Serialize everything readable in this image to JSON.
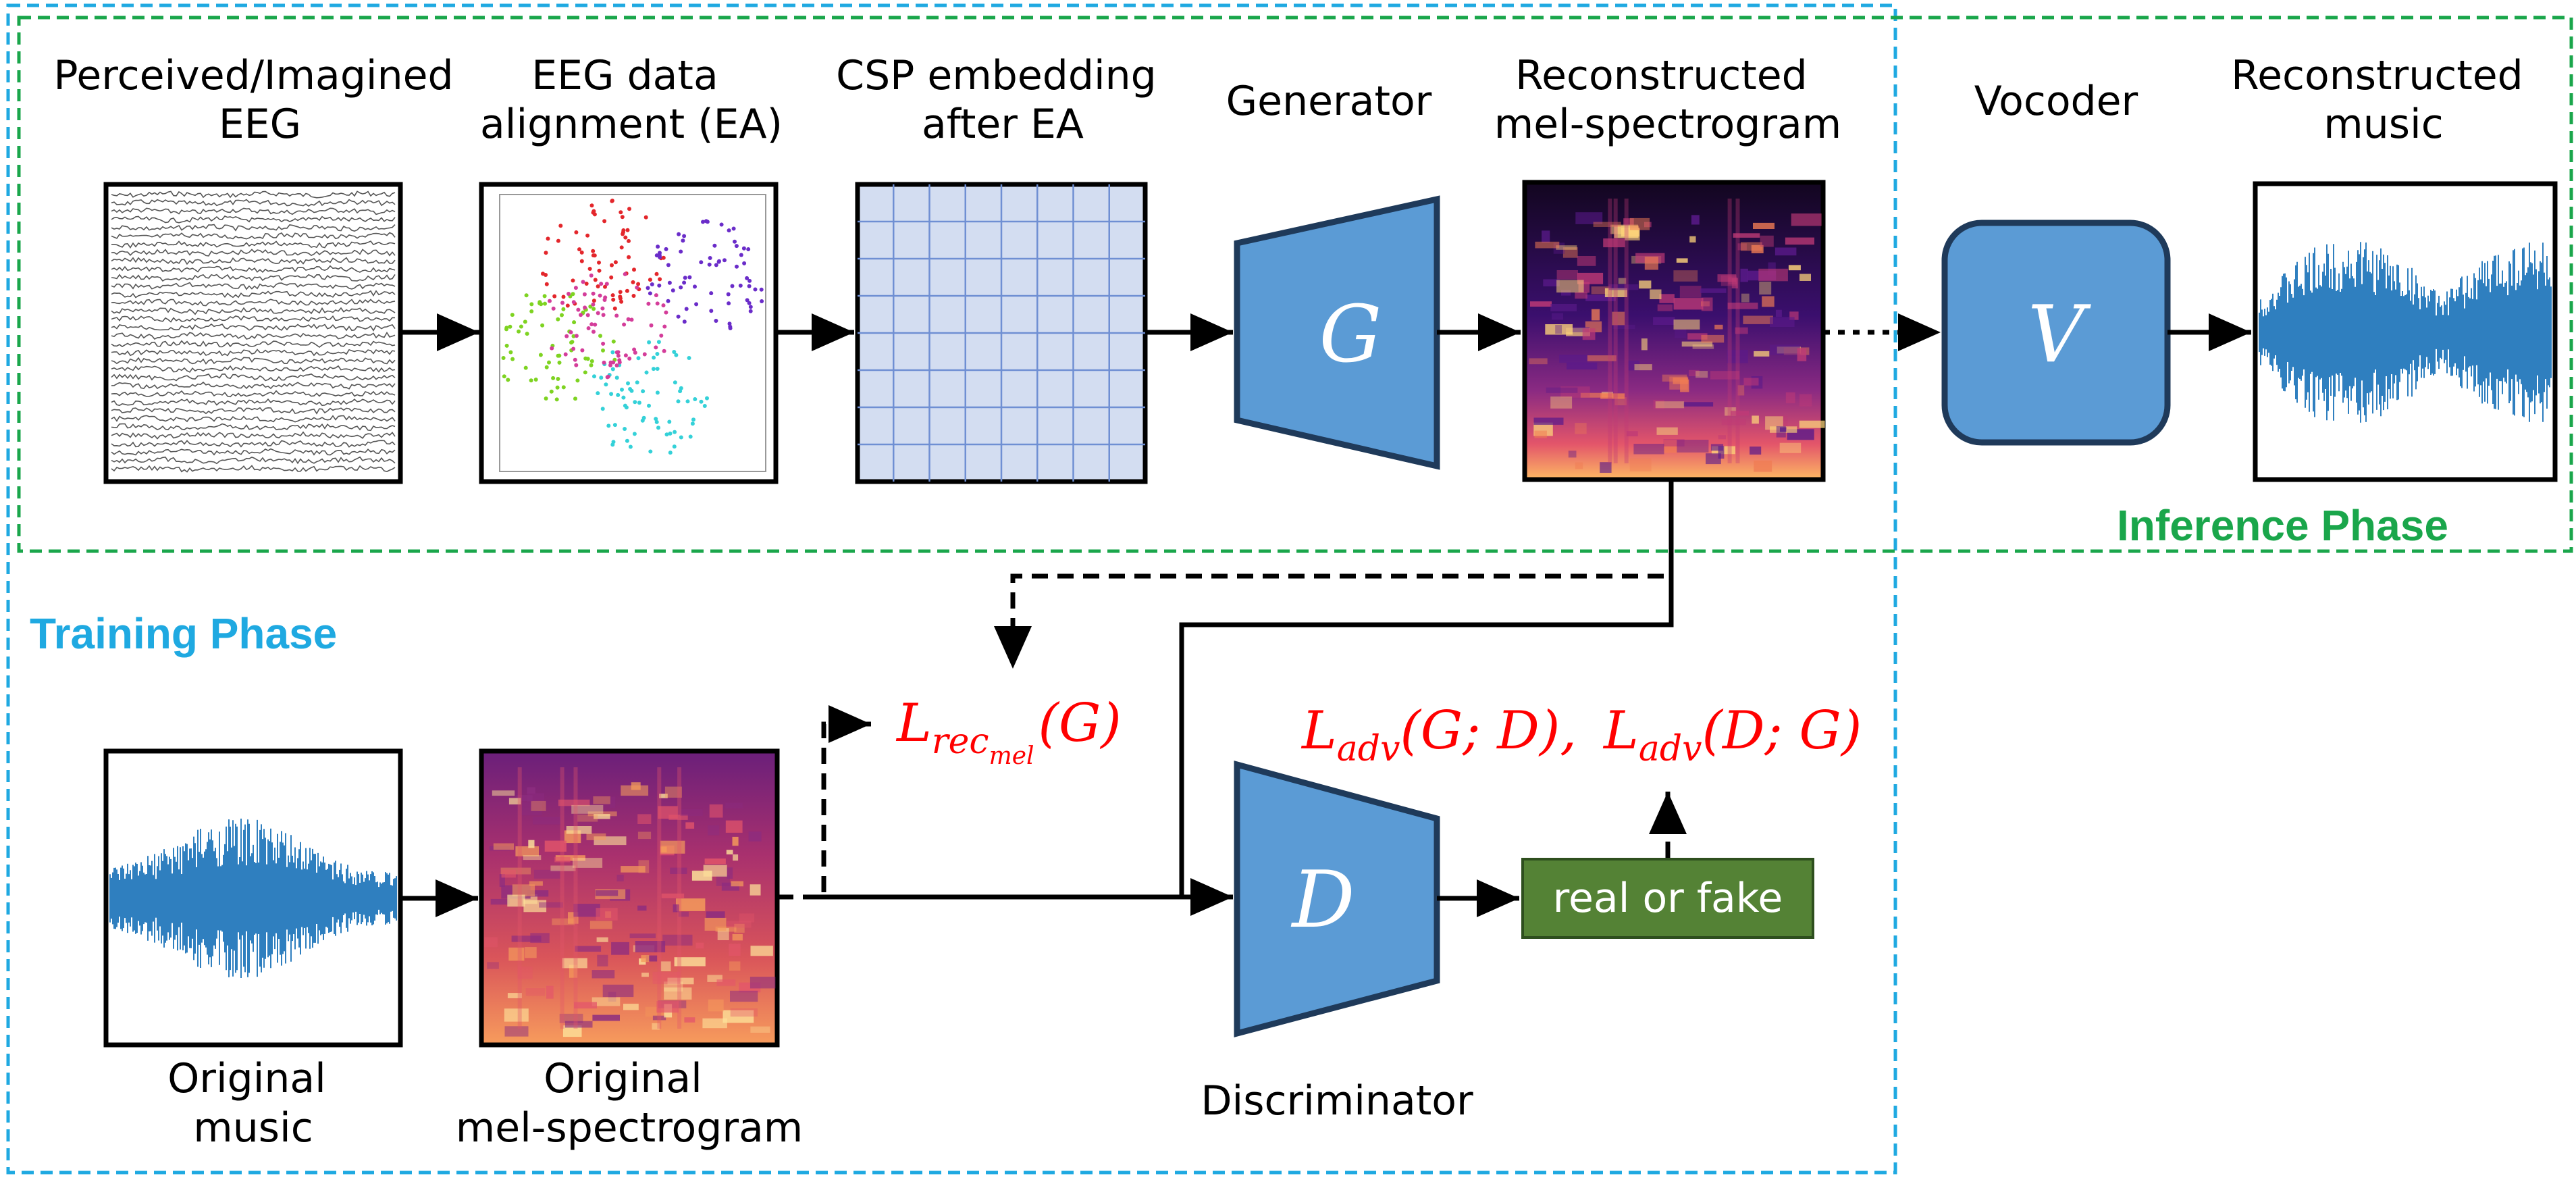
{
  "labels": {
    "eeg": [
      "Perceived/Imagined",
      "EEG"
    ],
    "ea": [
      "EEG data",
      "alignment (EA)"
    ],
    "csp": [
      "CSP embedding",
      "after EA"
    ],
    "generator": "Generator",
    "recon_mel": [
      "Reconstructed",
      "mel-spectrogram"
    ],
    "vocoder": "Vocoder",
    "recon_music": [
      "Reconstructed",
      "music"
    ],
    "orig_music": [
      "Original",
      "music"
    ],
    "orig_mel": [
      "Original",
      "mel-spectrogram"
    ],
    "discriminator": "Discriminator"
  },
  "phases": {
    "training": "Training Phase",
    "inference": "Inference Phase"
  },
  "symbols": {
    "generator": "G",
    "discriminator": "D",
    "vocoder": "V"
  },
  "losses": {
    "rec_L": "L",
    "rec_sub": "rec",
    "rec_subsub": "mel",
    "rec_arg": "(G)",
    "adv_L": "L",
    "adv_sub": "adv",
    "adv_arg1": "(G; D),",
    "adv_arg2": "(D; G)"
  },
  "output_box": "real or fake",
  "colors": {
    "training_border": "#1fa9e1",
    "inference_border": "#1aa64b",
    "block_fill": "#5b9bd5",
    "block_stroke": "#1f3a5a",
    "loss_text": "#ff0000",
    "output_fill": "#548235",
    "grid_fill": "#d3ddf1",
    "grid_line": "#6f8fd3"
  }
}
